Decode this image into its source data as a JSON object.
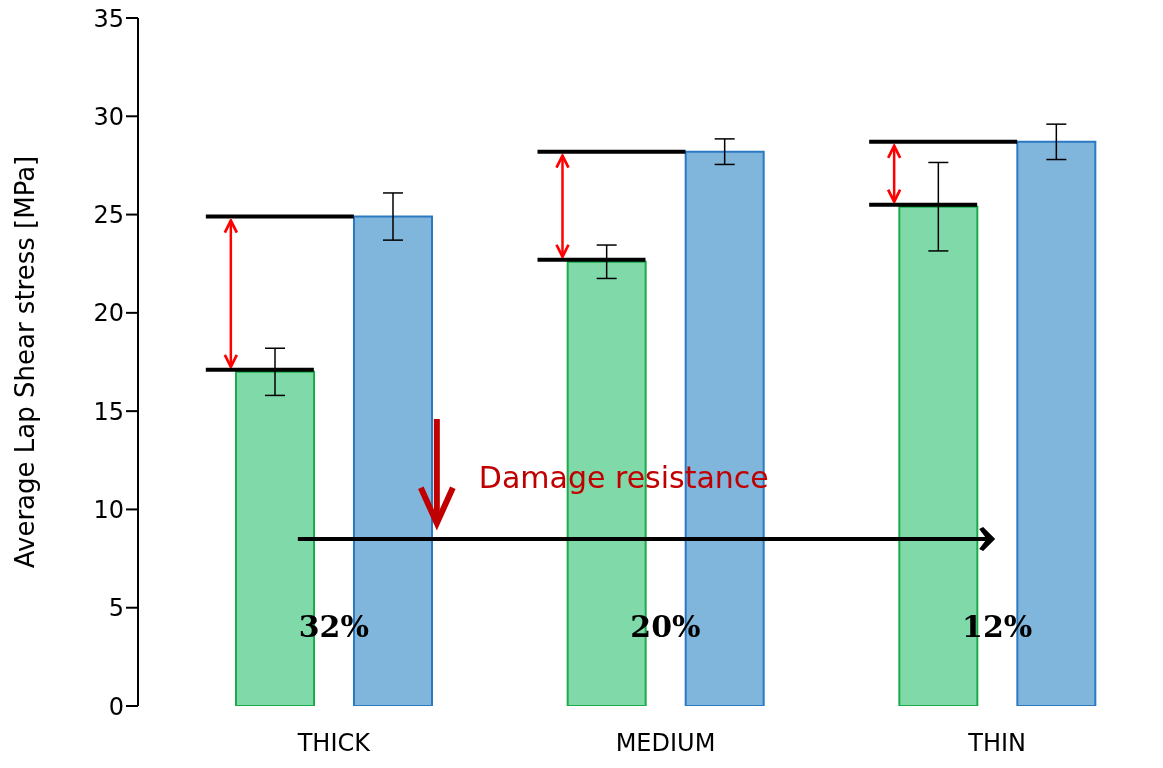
{
  "chart_data": {
    "type": "bar",
    "categories": [
      "THICK",
      "MEDIUM",
      "THIN"
    ],
    "series": [
      {
        "color": "#80d9a9",
        "values": [
          17.0,
          22.6,
          25.4
        ],
        "errors": [
          1.2,
          0.85,
          2.25
        ]
      },
      {
        "color": "#80b5dc",
        "values": [
          24.9,
          28.2,
          28.7
        ],
        "errors": [
          1.2,
          0.65,
          0.9
        ]
      }
    ],
    "ylabel": "Average Lap Shear stress [MPa]",
    "ylim": [
      0,
      35
    ],
    "yticks": [
      0,
      5,
      10,
      15,
      20,
      25,
      30,
      35
    ],
    "annotations": [
      "32%",
      "20%",
      "12%",
      "Damage resistance"
    ]
  }
}
